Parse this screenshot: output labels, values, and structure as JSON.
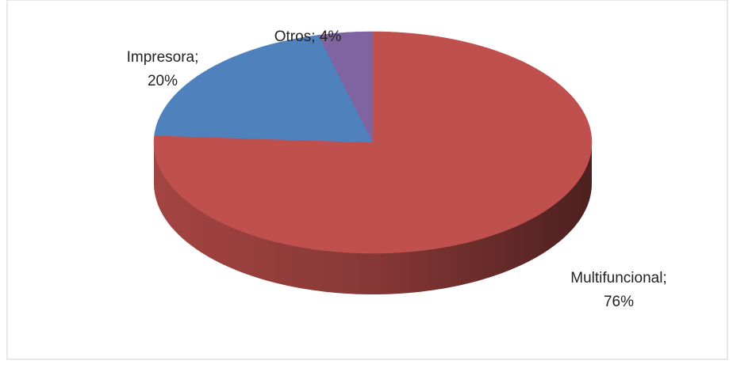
{
  "chart_data": {
    "type": "pie3d",
    "values": [
      76,
      20,
      4
    ],
    "value_labels": [
      "Multifuncional; 76%",
      "Impresora; 20%",
      "Otros; 4%"
    ],
    "colors": [
      "#c0504d",
      "#4f81bd",
      "#8064a2"
    ]
  }
}
